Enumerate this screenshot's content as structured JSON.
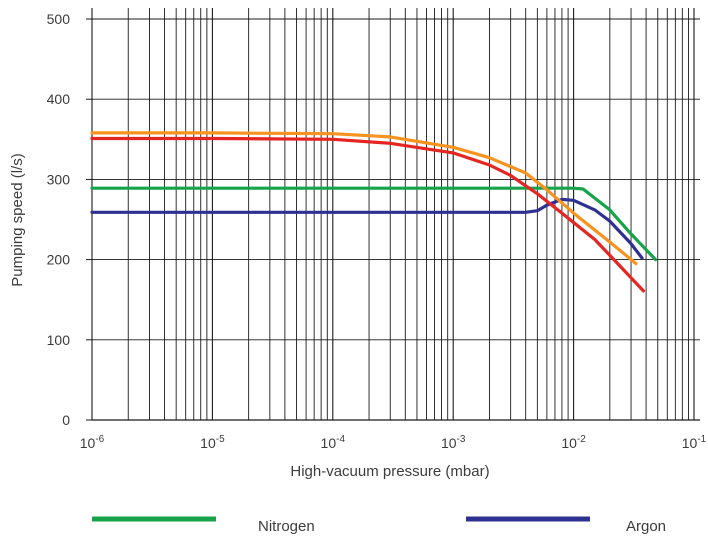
{
  "chart_data": {
    "type": "line",
    "title": "",
    "xlabel": "High-vacuum pressure (mbar)",
    "ylabel": "Pumping speed (l/s)",
    "xscale": "log",
    "xlim": [
      1e-06,
      0.1
    ],
    "ylim": [
      0,
      520
    ],
    "grid": true,
    "x_tick_labels": [
      {
        "base": "10",
        "exp": "-6",
        "value": 1e-06
      },
      {
        "base": "10",
        "exp": "-5",
        "value": 1e-05
      },
      {
        "base": "10",
        "exp": "-4",
        "value": 0.0001
      },
      {
        "base": "10",
        "exp": "-3",
        "value": 0.001
      },
      {
        "base": "10",
        "exp": "-2",
        "value": 0.01
      },
      {
        "base": "10",
        "exp": "-1",
        "value": 0.1
      }
    ],
    "y_ticks": [
      "0",
      "100",
      "200",
      "300",
      "400",
      "500"
    ],
    "legend_position": "bottom",
    "series": [
      {
        "name": "Nitrogen",
        "color": "#17a34a",
        "x": [
          1e-06,
          1e-05,
          0.0001,
          0.001,
          0.005,
          0.01,
          0.012,
          0.02,
          0.03,
          0.048
        ],
        "y": [
          289,
          289,
          289,
          289,
          289,
          289,
          288,
          262,
          232,
          200
        ]
      },
      {
        "name": "Argon",
        "color": "#2e3192",
        "x": [
          1e-06,
          1e-05,
          0.0001,
          0.001,
          0.004,
          0.005,
          0.006,
          0.008,
          0.01,
          0.015,
          0.02,
          0.03,
          0.037
        ],
        "y": [
          259,
          259,
          259,
          259,
          259,
          261,
          268,
          275,
          274,
          262,
          248,
          220,
          202
        ]
      },
      {
        "name": "",
        "color": "#f7931e",
        "x": [
          1e-06,
          1e-05,
          0.0001,
          0.0003,
          0.001,
          0.002,
          0.004,
          0.006,
          0.01,
          0.02,
          0.033
        ],
        "y": [
          358,
          358,
          357,
          353,
          340,
          327,
          308,
          287,
          258,
          222,
          195
        ]
      },
      {
        "name": "",
        "color": "#e52521",
        "x": [
          1e-06,
          1e-05,
          0.0001,
          0.0003,
          0.001,
          0.002,
          0.003,
          0.005,
          0.008,
          0.015,
          0.025,
          0.038
        ],
        "y": [
          351,
          351,
          350,
          345,
          333,
          318,
          305,
          282,
          258,
          225,
          190,
          161
        ]
      }
    ]
  }
}
